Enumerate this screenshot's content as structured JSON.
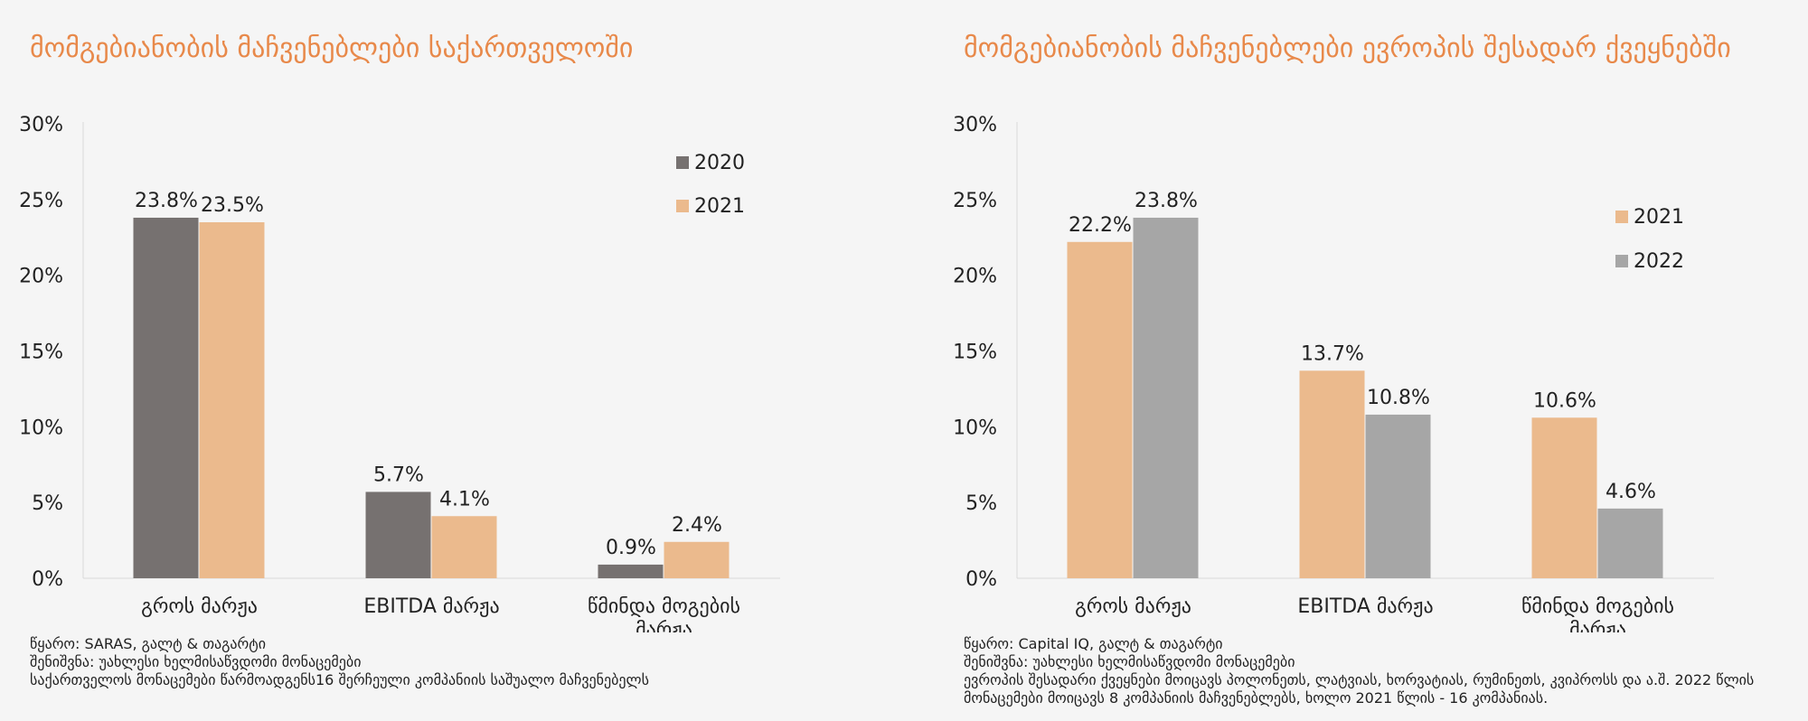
{
  "colors": {
    "title": "#e8894a",
    "c2020": "#767170",
    "c2021": "#ebba8d",
    "c2022": "#a6a6a6"
  },
  "left": {
    "title": "მომგებიანობის მაჩვენებლები საქართველოში",
    "notes": [
      "წყარო: SARAS, გალტ & თაგარტი",
      "შენიშვნა: უახლესი ხელმისაწვდომი მონაცემები",
      "საქართველოს მონაცემები წარმოადგენს16 შერჩეული კომპანიის საშუალო მაჩვენებელს"
    ]
  },
  "right": {
    "title": "მომგებიანობის მაჩვენებლები ევროპის შესადარ ქვეყნებში",
    "notes": [
      "წყარო: Capital IQ, გალტ & თაგარტი",
      "შენიშვნა: უახლესი ხელმისაწვდომი მონაცემები",
      "ევროპის შესადარი ქვეყნები მოიცავს პოლონეთს, ლატვიას, ხორვატიას, რუმინეთს, კვიპროსს და ა.შ. 2022 წლის მონაცემები მოიცავს 8 კომპანიის მაჩვენებლებს, ხოლო 2021 წლის - 16 კომპანიას."
    ]
  },
  "chart_data": [
    {
      "type": "bar",
      "categories": [
        "გროს მარჟა",
        "EBITDA მარჟა",
        "წმინდა მოგების მარჟა"
      ],
      "series": [
        {
          "name": "2020",
          "values": [
            23.8,
            5.7,
            0.9
          ],
          "labels": [
            "23.8%",
            "5.7%",
            "0.9%"
          ],
          "color": "#767170"
        },
        {
          "name": "2021",
          "values": [
            23.5,
            4.1,
            2.4
          ],
          "labels": [
            "23.5%",
            "4.1%",
            "2.4%"
          ],
          "color": "#ebba8d"
        }
      ],
      "yticks": [
        "0%",
        "5%",
        "10%",
        "15%",
        "20%",
        "25%",
        "30%"
      ],
      "ylim": [
        0,
        30
      ],
      "grid": false,
      "legend": "top-right"
    },
    {
      "type": "bar",
      "categories": [
        "გროს მარჟა",
        "EBITDA მარჟა",
        "წმინდა მოგების მარჟა"
      ],
      "series": [
        {
          "name": "2021",
          "values": [
            22.2,
            13.7,
            10.6
          ],
          "labels": [
            "22.2%",
            "13.7%",
            "10.6%"
          ],
          "color": "#ebba8d"
        },
        {
          "name": "2022",
          "values": [
            23.8,
            10.8,
            4.6
          ],
          "labels": [
            "23.8%",
            "10.8%",
            "4.6%"
          ],
          "color": "#a6a6a6"
        }
      ],
      "yticks": [
        "0%",
        "5%",
        "10%",
        "15%",
        "20%",
        "25%",
        "30%"
      ],
      "ylim": [
        0,
        30
      ],
      "grid": false,
      "legend": "top-right"
    }
  ]
}
